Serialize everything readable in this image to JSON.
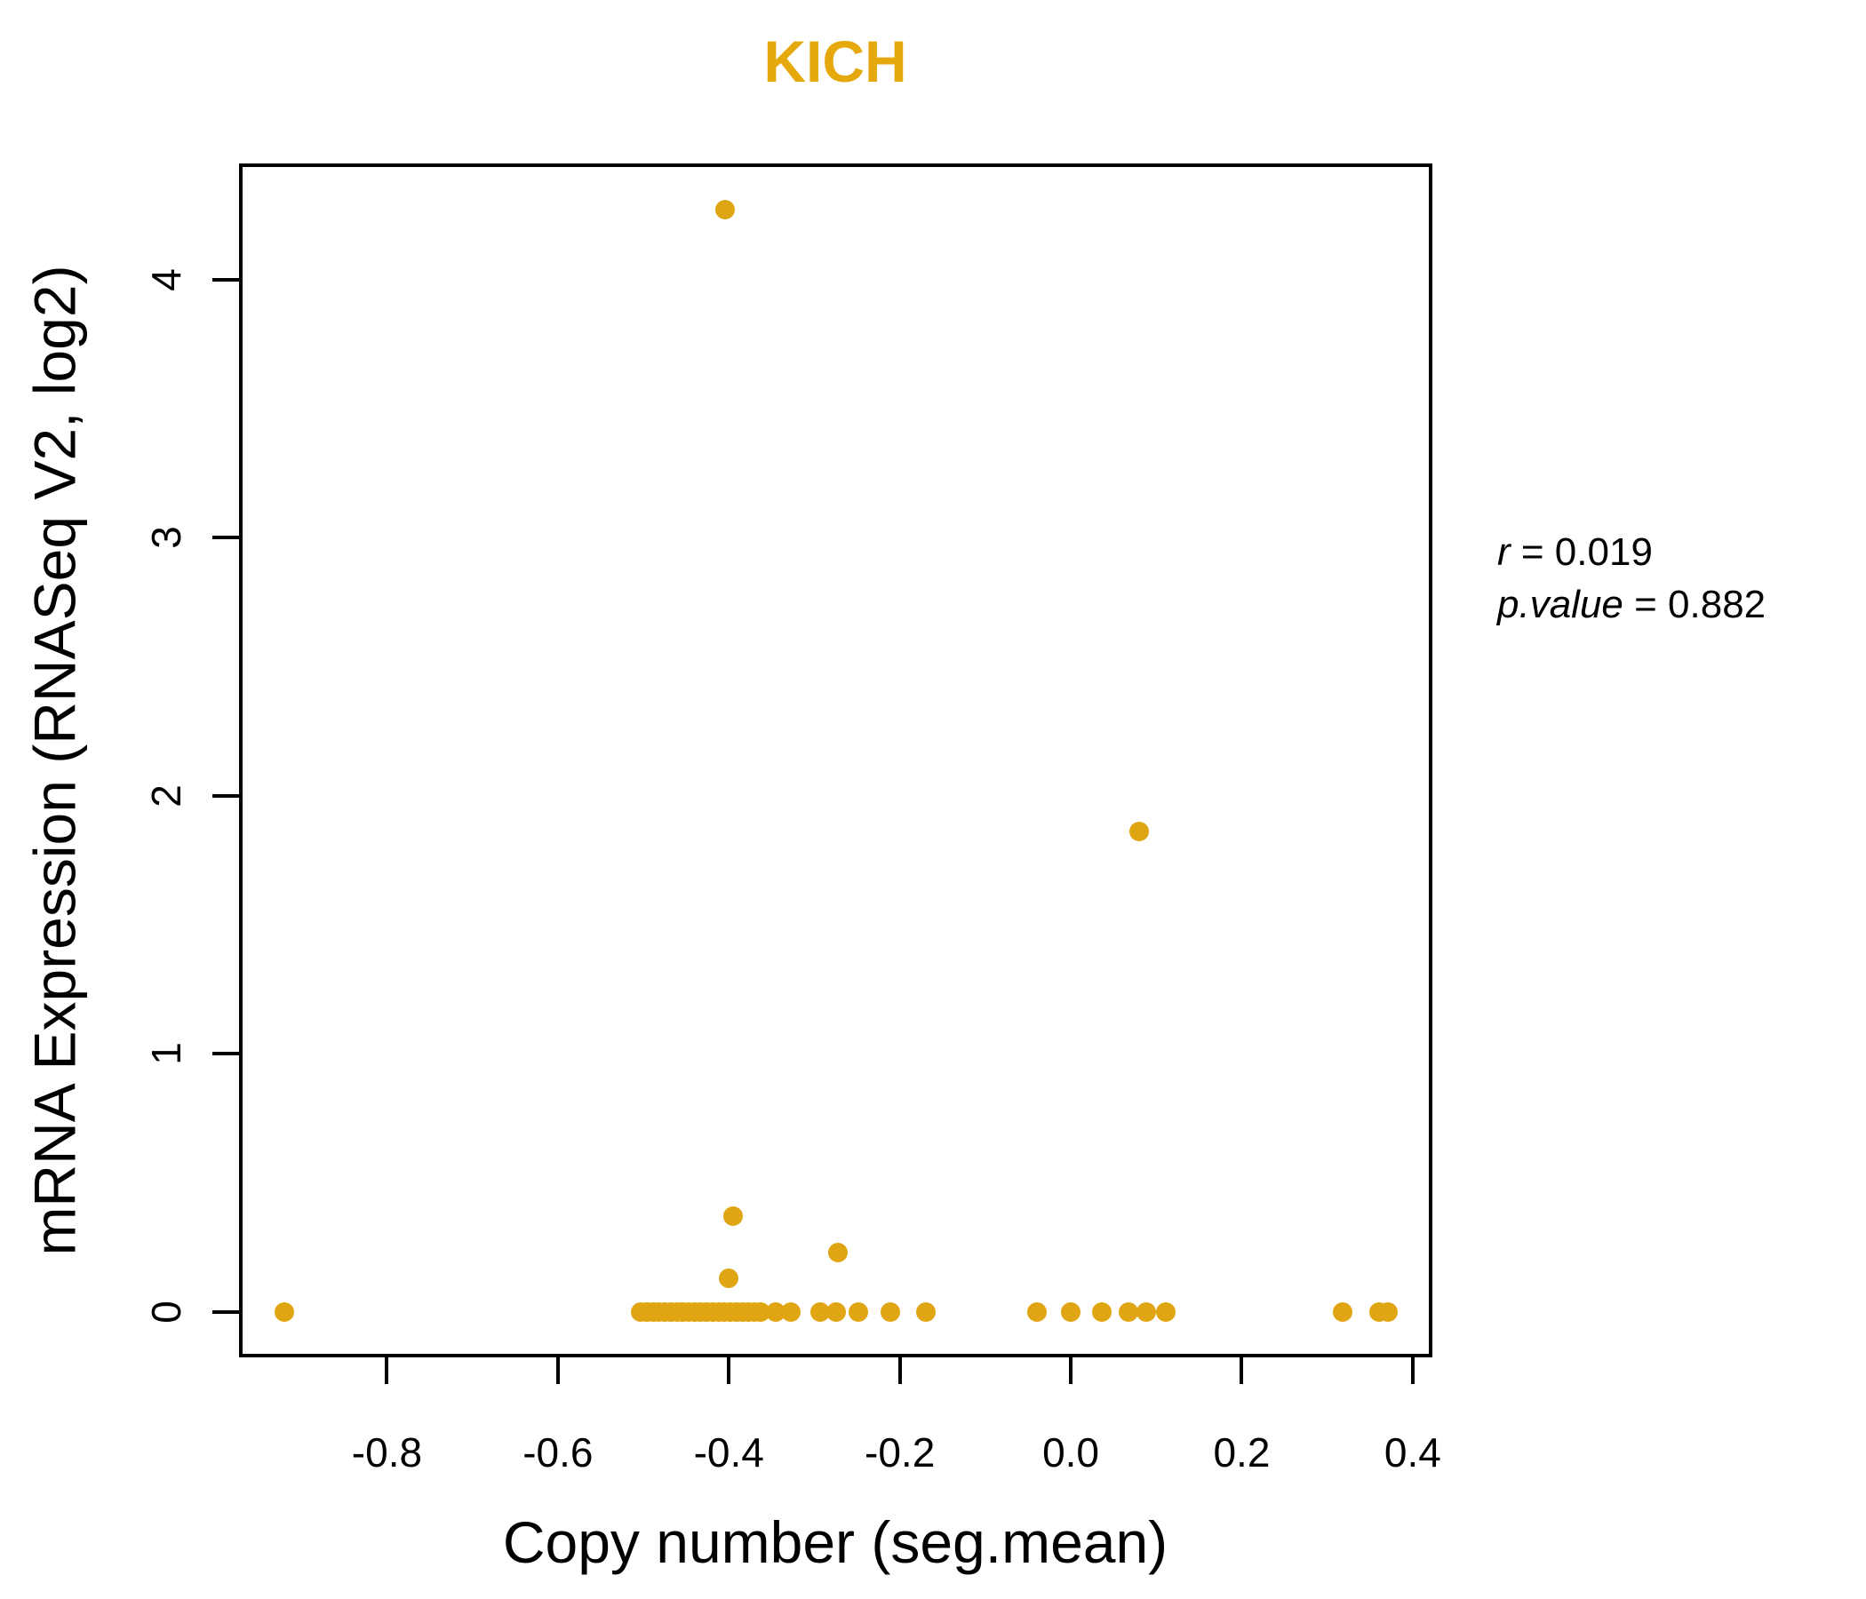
{
  "chart_data": {
    "type": "scatter",
    "title": "KICH",
    "title_color": "#E5A80D",
    "point_color": "#E0A512",
    "xlabel": "Copy number (seg.mean)",
    "ylabel": "mRNA Expression (RNASeq V2, log2)",
    "xlim": [
      -0.973,
      0.423
    ],
    "ylim": [
      -0.177,
      4.45
    ],
    "grid": false,
    "legend": "none",
    "xticks": {
      "values": [
        -0.8,
        -0.6,
        -0.4,
        -0.2,
        0.0,
        0.2,
        0.4
      ],
      "labels": [
        "-0.8",
        "-0.6",
        "-0.4",
        "-0.2",
        "0.0",
        "0.2",
        "0.4"
      ]
    },
    "yticks": {
      "values": [
        0,
        1,
        2,
        3,
        4
      ],
      "labels": [
        "0",
        "1",
        "2",
        "3",
        "4"
      ]
    },
    "stats": {
      "r": 0.019,
      "p_value": 0.882
    },
    "annotation": {
      "lines": [
        {
          "var": "r",
          "rest": " = 0.019"
        },
        {
          "var": "p.value",
          "rest": " = 0.882"
        }
      ]
    },
    "points": [
      [
        -0.92,
        0
      ],
      [
        -0.503,
        0
      ],
      [
        -0.496,
        0
      ],
      [
        -0.489,
        0
      ],
      [
        -0.482,
        0
      ],
      [
        -0.475,
        0
      ],
      [
        -0.468,
        0
      ],
      [
        -0.461,
        0
      ],
      [
        -0.454,
        0
      ],
      [
        -0.447,
        0
      ],
      [
        -0.44,
        0
      ],
      [
        -0.433,
        0
      ],
      [
        -0.426,
        0
      ],
      [
        -0.419,
        0
      ],
      [
        -0.412,
        0
      ],
      [
        -0.405,
        0
      ],
      [
        -0.398,
        0
      ],
      [
        -0.391,
        0
      ],
      [
        -0.384,
        0
      ],
      [
        -0.377,
        0
      ],
      [
        -0.37,
        0
      ],
      [
        -0.363,
        0
      ],
      [
        -0.345,
        0
      ],
      [
        -0.328,
        0
      ],
      [
        -0.293,
        0
      ],
      [
        -0.274,
        0
      ],
      [
        -0.248,
        0
      ],
      [
        -0.211,
        0
      ],
      [
        -0.17,
        0
      ],
      [
        -0.04,
        0
      ],
      [
        0.0,
        0
      ],
      [
        0.036,
        0
      ],
      [
        0.068,
        0
      ],
      [
        0.088,
        0
      ],
      [
        0.111,
        0
      ],
      [
        0.318,
        0
      ],
      [
        0.361,
        0
      ],
      [
        0.371,
        0
      ],
      [
        -0.404,
        4.27
      ],
      [
        0.08,
        1.86
      ],
      [
        -0.395,
        0.37
      ],
      [
        -0.4,
        0.13
      ],
      [
        -0.272,
        0.23
      ]
    ]
  }
}
